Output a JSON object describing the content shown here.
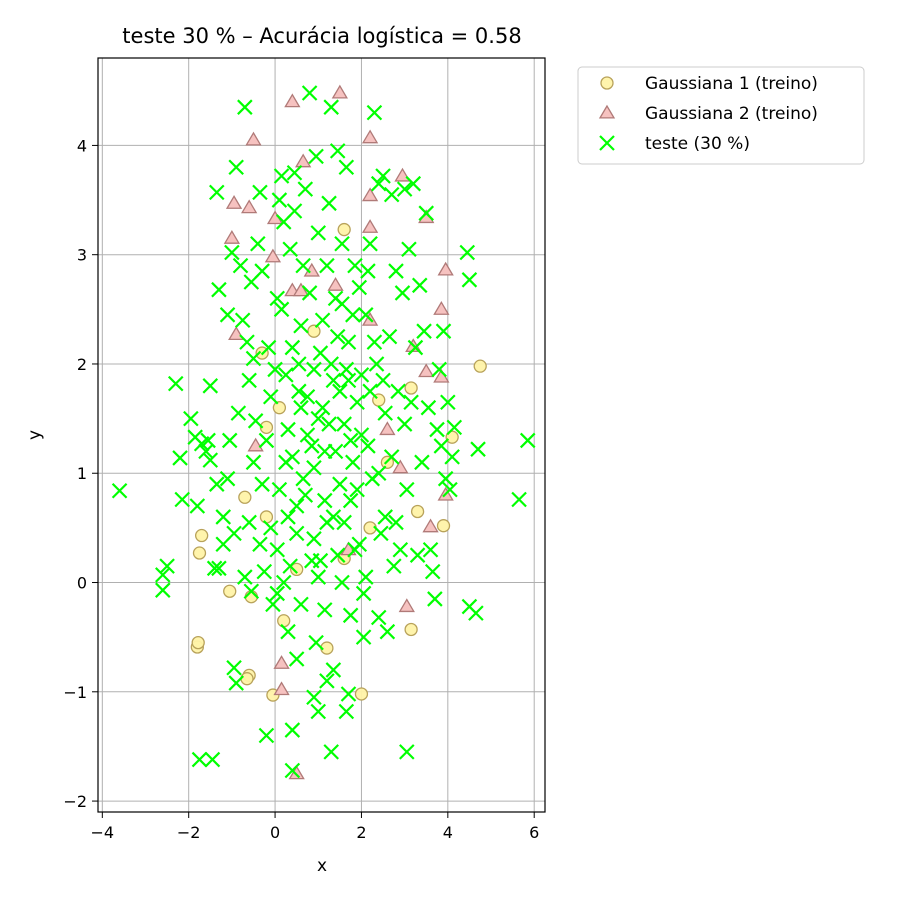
{
  "chart_data": {
    "type": "scatter",
    "title": "teste 30 % – Acurácia logística = 0.58",
    "xlabel": "x",
    "ylabel": "y",
    "xlim": [
      -4.1,
      6.25
    ],
    "ylim": [
      -2.1,
      4.8
    ],
    "xticks": [
      -4,
      -2,
      0,
      2,
      4,
      6
    ],
    "yticks": [
      -2,
      -1,
      0,
      1,
      2,
      3,
      4
    ],
    "grid": true,
    "legend_position": "outside-top-right",
    "colors": {
      "g1_fill": "#fff3a8",
      "g1_edge": "#b8a25a",
      "g2_fill": "#f6c2c0",
      "g2_edge": "#b07a78",
      "test": "#00ff00",
      "grid": "#b0b0b0"
    },
    "series": [
      {
        "name": "Gaussiana 1 (treino)",
        "marker": "circle",
        "points": [
          [
            4.75,
            1.98
          ],
          [
            3.9,
            0.52
          ],
          [
            3.15,
            -0.43
          ],
          [
            2.0,
            -1.02
          ],
          [
            -0.05,
            -1.03
          ],
          [
            -1.8,
            -0.59
          ],
          [
            -1.78,
            -0.55
          ],
          [
            -0.6,
            -0.85
          ],
          [
            -0.65,
            -0.88
          ],
          [
            -1.7,
            0.43
          ],
          [
            -1.75,
            0.27
          ],
          [
            -1.05,
            -0.08
          ],
          [
            -0.55,
            -0.13
          ],
          [
            -0.7,
            0.78
          ],
          [
            -0.2,
            1.42
          ],
          [
            0.1,
            1.6
          ],
          [
            1.6,
            3.23
          ],
          [
            2.4,
            1.67
          ],
          [
            3.15,
            1.78
          ],
          [
            4.1,
            1.33
          ],
          [
            3.3,
            0.65
          ],
          [
            0.5,
            0.12
          ],
          [
            1.6,
            0.22
          ],
          [
            0.2,
            -0.35
          ],
          [
            2.2,
            0.5
          ],
          [
            -0.3,
            2.1
          ],
          [
            0.9,
            2.3
          ],
          [
            2.6,
            1.1
          ],
          [
            -0.2,
            0.6
          ],
          [
            1.2,
            -0.6
          ]
        ]
      },
      {
        "name": "Gaussiana 2 (treino)",
        "marker": "triangle",
        "points": [
          [
            0.4,
            4.4
          ],
          [
            1.5,
            4.48
          ],
          [
            2.2,
            4.07
          ],
          [
            -0.5,
            4.05
          ],
          [
            0.65,
            3.85
          ],
          [
            2.2,
            3.54
          ],
          [
            2.95,
            3.72
          ],
          [
            -0.95,
            3.47
          ],
          [
            -0.6,
            3.43
          ],
          [
            -1.0,
            3.15
          ],
          [
            3.5,
            3.34
          ],
          [
            3.95,
            2.86
          ],
          [
            -0.05,
            2.98
          ],
          [
            0.4,
            2.67
          ],
          [
            0.6,
            2.67
          ],
          [
            0.85,
            2.85
          ],
          [
            3.85,
            2.5
          ],
          [
            -0.9,
            2.27
          ],
          [
            2.2,
            2.4
          ],
          [
            3.2,
            2.16
          ],
          [
            3.85,
            1.88
          ],
          [
            3.5,
            1.93
          ],
          [
            2.6,
            1.4
          ],
          [
            3.6,
            0.51
          ],
          [
            3.95,
            0.8
          ],
          [
            3.05,
            -0.22
          ],
          [
            0.15,
            -0.74
          ],
          [
            0.15,
            -0.98
          ],
          [
            0.5,
            -1.75
          ],
          [
            1.7,
            0.3
          ],
          [
            2.9,
            1.05
          ],
          [
            1.4,
            2.72
          ],
          [
            0.0,
            3.33
          ],
          [
            2.2,
            3.25
          ],
          [
            -0.45,
            1.25
          ]
        ]
      },
      {
        "name": "teste (30 %)",
        "marker": "x",
        "points": [
          [
            -3.6,
            0.84
          ],
          [
            -2.6,
            0.07
          ],
          [
            -2.6,
            -0.07
          ],
          [
            -2.5,
            0.15
          ],
          [
            -2.3,
            1.82
          ],
          [
            -2.2,
            1.14
          ],
          [
            -2.15,
            0.76
          ],
          [
            -1.95,
            1.5
          ],
          [
            -1.85,
            1.33
          ],
          [
            -1.8,
            0.7
          ],
          [
            -1.7,
            1.27
          ],
          [
            -1.6,
            1.2
          ],
          [
            -1.55,
            1.3
          ],
          [
            -1.5,
            1.12
          ],
          [
            -1.4,
            0.13
          ],
          [
            -1.3,
            0.13
          ],
          [
            -1.35,
            0.9
          ],
          [
            -1.3,
            2.68
          ],
          [
            -1.35,
            3.57
          ],
          [
            -1.2,
            0.6
          ],
          [
            -1.1,
            2.45
          ],
          [
            -1.05,
            1.3
          ],
          [
            -1.0,
            3.02
          ],
          [
            -0.9,
            3.8
          ],
          [
            -0.85,
            1.55
          ],
          [
            -0.75,
            2.4
          ],
          [
            -0.7,
            4.35
          ],
          [
            -0.65,
            2.2
          ],
          [
            -0.6,
            1.85
          ],
          [
            -0.55,
            2.75
          ],
          [
            -0.5,
            2.05
          ],
          [
            -0.45,
            1.48
          ],
          [
            -0.35,
            3.57
          ],
          [
            -0.3,
            2.85
          ],
          [
            -0.25,
            0.1
          ],
          [
            -0.2,
            1.3
          ],
          [
            -0.15,
            2.15
          ],
          [
            -0.1,
            0.5
          ],
          [
            -0.05,
            -0.2
          ],
          [
            0.05,
            2.6
          ],
          [
            0.1,
            3.5
          ],
          [
            0.15,
            3.72
          ],
          [
            0.2,
            3.3
          ],
          [
            0.25,
            1.9
          ],
          [
            0.3,
            0.6
          ],
          [
            0.35,
            3.05
          ],
          [
            0.4,
            1.15
          ],
          [
            0.45,
            3.4
          ],
          [
            0.5,
            0.7
          ],
          [
            0.55,
            1.75
          ],
          [
            0.6,
            2.35
          ],
          [
            0.65,
            0.95
          ],
          [
            0.7,
            3.6
          ],
          [
            0.75,
            1.35
          ],
          [
            0.8,
            4.48
          ],
          [
            0.85,
            0.2
          ],
          [
            0.9,
            1.95
          ],
          [
            0.95,
            3.9
          ],
          [
            1.0,
            0.05
          ],
          [
            1.05,
            2.1
          ],
          [
            1.1,
            1.6
          ],
          [
            1.15,
            1.2
          ],
          [
            1.2,
            0.55
          ],
          [
            1.25,
            3.47
          ],
          [
            1.3,
            4.35
          ],
          [
            1.35,
            1.85
          ],
          [
            1.4,
            2.6
          ],
          [
            1.45,
            3.95
          ],
          [
            1.5,
            0.9
          ],
          [
            1.55,
            0.0
          ],
          [
            1.6,
            1.45
          ],
          [
            1.65,
            3.8
          ],
          [
            1.7,
            2.2
          ],
          [
            1.75,
            0.75
          ],
          [
            1.8,
            1.1
          ],
          [
            1.85,
            2.9
          ],
          [
            1.9,
            1.65
          ],
          [
            1.95,
            0.35
          ],
          [
            2.0,
            1.9
          ],
          [
            2.05,
            -0.1
          ],
          [
            2.1,
            2.45
          ],
          [
            2.15,
            1.25
          ],
          [
            2.2,
            3.1
          ],
          [
            2.25,
            0.95
          ],
          [
            2.3,
            4.3
          ],
          [
            2.35,
            2.0
          ],
          [
            2.4,
            3.65
          ],
          [
            2.45,
            0.45
          ],
          [
            2.5,
            3.72
          ],
          [
            2.55,
            1.55
          ],
          [
            2.6,
            -0.45
          ],
          [
            2.65,
            2.25
          ],
          [
            2.7,
            3.55
          ],
          [
            2.75,
            0.15
          ],
          [
            2.8,
            2.85
          ],
          [
            2.85,
            1.75
          ],
          [
            2.9,
            0.3
          ],
          [
            2.95,
            2.65
          ],
          [
            3.0,
            3.6
          ],
          [
            3.05,
            0.85
          ],
          [
            3.1,
            3.05
          ],
          [
            3.15,
            1.65
          ],
          [
            3.2,
            3.65
          ],
          [
            3.25,
            2.15
          ],
          [
            3.3,
            0.25
          ],
          [
            3.35,
            2.72
          ],
          [
            3.4,
            1.1
          ],
          [
            3.45,
            2.3
          ],
          [
            3.5,
            3.38
          ],
          [
            3.55,
            1.6
          ],
          [
            3.6,
            0.3
          ],
          [
            3.65,
            0.1
          ],
          [
            3.7,
            -0.15
          ],
          [
            3.75,
            1.4
          ],
          [
            3.8,
            1.95
          ],
          [
            3.85,
            1.25
          ],
          [
            3.9,
            2.3
          ],
          [
            3.95,
            0.95
          ],
          [
            4.0,
            1.65
          ],
          [
            4.05,
            0.85
          ],
          [
            4.1,
            1.15
          ],
          [
            4.15,
            1.42
          ],
          [
            4.45,
            3.02
          ],
          [
            4.5,
            2.77
          ],
          [
            4.5,
            -0.22
          ],
          [
            4.65,
            -0.28
          ],
          [
            4.7,
            1.22
          ],
          [
            5.65,
            0.76
          ],
          [
            5.85,
            1.3
          ],
          [
            3.05,
            -1.55
          ],
          [
            1.3,
            -1.55
          ],
          [
            0.4,
            -1.72
          ],
          [
            0.4,
            -1.35
          ],
          [
            -0.2,
            -1.4
          ],
          [
            -1.45,
            -1.62
          ],
          [
            -1.75,
            -1.62
          ],
          [
            -0.9,
            -0.92
          ],
          [
            -0.95,
            -0.78
          ],
          [
            -0.55,
            -0.08
          ],
          [
            0.5,
            -0.7
          ],
          [
            0.6,
            -0.2
          ],
          [
            0.9,
            -1.05
          ],
          [
            1.0,
            -1.18
          ],
          [
            1.2,
            -0.9
          ],
          [
            1.35,
            -0.8
          ],
          [
            1.65,
            -1.18
          ],
          [
            1.7,
            -1.02
          ],
          [
            2.05,
            -0.5
          ],
          [
            2.4,
            -0.32
          ],
          [
            2.55,
            0.6
          ],
          [
            0.2,
            0.0
          ],
          [
            0.5,
            0.45
          ],
          [
            0.7,
            0.8
          ],
          [
            0.9,
            1.05
          ],
          [
            1.0,
            1.5
          ],
          [
            1.1,
            2.4
          ],
          [
            1.3,
            2.0
          ],
          [
            1.4,
            1.2
          ],
          [
            1.5,
            1.75
          ],
          [
            1.6,
            0.55
          ],
          [
            1.7,
            1.85
          ],
          [
            1.8,
            2.45
          ],
          [
            1.9,
            0.85
          ],
          [
            2.0,
            1.35
          ],
          [
            0.3,
            1.4
          ],
          [
            0.4,
            2.15
          ],
          [
            0.6,
            1.6
          ],
          [
            0.8,
            2.65
          ],
          [
            0.9,
            0.4
          ],
          [
            1.2,
            2.9
          ],
          [
            1.45,
            0.25
          ],
          [
            1.55,
            2.55
          ],
          [
            1.75,
            1.3
          ],
          [
            2.2,
            1.75
          ],
          [
            2.4,
            1.0
          ],
          [
            0.1,
            0.85
          ],
          [
            0.25,
            1.1
          ],
          [
            0.55,
            2.0
          ],
          [
            0.75,
            1.7
          ],
          [
            1.15,
            0.75
          ],
          [
            1.25,
            1.45
          ],
          [
            1.35,
            0.6
          ],
          [
            1.65,
            1.95
          ],
          [
            1.85,
            0.3
          ],
          [
            2.3,
            2.2
          ],
          [
            -0.3,
            0.9
          ],
          [
            -0.1,
            1.7
          ],
          [
            0.05,
            0.3
          ],
          [
            0.15,
            2.5
          ],
          [
            0.35,
            0.15
          ],
          [
            0.65,
            2.9
          ],
          [
            0.85,
            1.25
          ],
          [
            1.05,
            0.2
          ],
          [
            1.45,
            2.25
          ],
          [
            1.95,
            2.7
          ],
          [
            2.1,
            0.05
          ],
          [
            2.5,
            1.85
          ],
          [
            2.7,
            1.15
          ],
          [
            2.8,
            0.55
          ],
          [
            3.0,
            1.45
          ],
          [
            -1.5,
            1.8
          ],
          [
            -1.2,
            0.35
          ],
          [
            -0.8,
            2.9
          ],
          [
            -0.6,
            0.55
          ],
          [
            -0.4,
            3.1
          ],
          [
            0.0,
            1.95
          ],
          [
            0.45,
            3.75
          ],
          [
            1.0,
            3.2
          ],
          [
            1.55,
            3.1
          ],
          [
            2.15,
            2.85
          ],
          [
            1.15,
            -0.25
          ],
          [
            1.75,
            -0.3
          ],
          [
            0.95,
            -0.55
          ],
          [
            0.3,
            -0.45
          ],
          [
            0.05,
            -0.1
          ],
          [
            -0.35,
            0.35
          ],
          [
            -0.7,
            0.05
          ],
          [
            -0.95,
            0.45
          ],
          [
            -1.1,
            0.95
          ],
          [
            -0.5,
            1.1
          ]
        ]
      }
    ]
  }
}
